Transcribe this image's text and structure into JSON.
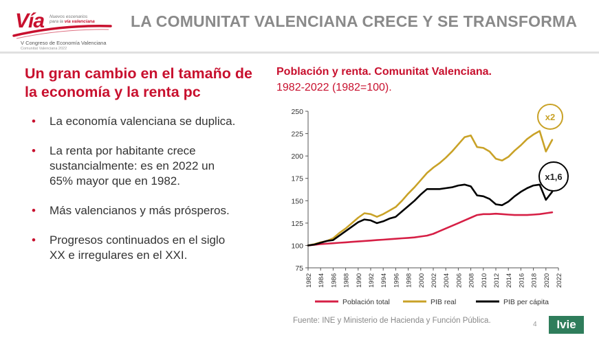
{
  "logo": {
    "brand": "Vía",
    "tagline_1": "Nuevos escenarios",
    "tagline_2": "para la",
    "tagline_3": "vía valenciana",
    "congress": "V Congreso de Economía Valenciana",
    "place": "Comunitat Valenciana 2022"
  },
  "header": {
    "title": "LA COMUNITAT VALENCIANA CRECE Y SE TRANSFORMA"
  },
  "left": {
    "heading": "Un gran cambio en el tamaño de la economía y la renta pc",
    "bullet_marker": "•",
    "bullets": [
      "La economía valenciana se duplica.",
      "La renta por habitante crece sustancialmente: es en 2022 un 65% mayor que en 1982.",
      "Más valencianos y más prósperos.",
      "Progresos continuados en el siglo XX e irregulares en el XXI."
    ]
  },
  "chart_data": {
    "type": "line",
    "title": "Población y renta. Comunitat Valenciana.",
    "subtitle": "1982-2022 (1982=100).",
    "xlabel": "",
    "ylabel": "",
    "ylim": [
      75,
      250
    ],
    "yticks": [
      75,
      100,
      125,
      150,
      175,
      200,
      225,
      250
    ],
    "x": [
      1982,
      1983,
      1984,
      1985,
      1986,
      1987,
      1988,
      1989,
      1990,
      1991,
      1992,
      1993,
      1994,
      1995,
      1996,
      1997,
      1998,
      1999,
      2000,
      2001,
      2002,
      2003,
      2004,
      2005,
      2006,
      2007,
      2008,
      2009,
      2010,
      2011,
      2012,
      2013,
      2014,
      2015,
      2016,
      2017,
      2018,
      2019,
      2020,
      2021
    ],
    "xticks": [
      1982,
      1984,
      1986,
      1988,
      1990,
      1992,
      1994,
      1996,
      1998,
      2000,
      2002,
      2004,
      2006,
      2008,
      2010,
      2012,
      2014,
      2016,
      2018,
      2020,
      2022
    ],
    "xlim": [
      1982,
      2022
    ],
    "series": [
      {
        "name": "Población total",
        "color": "#d61f45",
        "values": [
          100,
          100.8,
          101.5,
          102,
          102.5,
          103,
          103.5,
          104,
          104.5,
          105,
          105.5,
          106,
          106.5,
          107,
          107.5,
          108,
          108.5,
          109,
          110,
          111,
          113,
          116,
          119,
          122,
          125,
          128,
          131,
          134,
          135,
          135,
          135.5,
          135,
          134.5,
          134,
          134,
          134,
          134.5,
          135,
          136,
          137
        ]
      },
      {
        "name": "PIB real",
        "color": "#c9a227",
        "values": [
          100,
          101.5,
          103.5,
          105,
          108,
          114,
          119,
          125,
          131,
          136,
          135,
          132,
          135,
          139,
          143,
          150,
          158,
          165,
          173,
          181,
          187,
          192,
          198,
          205,
          213,
          221,
          223,
          210,
          209,
          205,
          197,
          195,
          199,
          206,
          212,
          219,
          224,
          228,
          205,
          218
        ]
      },
      {
        "name": "PIB per cápita",
        "color": "#000000",
        "values": [
          100,
          101,
          103,
          105,
          106,
          111,
          116,
          121,
          126,
          129,
          128,
          125,
          127,
          130,
          132,
          138,
          144,
          150,
          157,
          163,
          163,
          163,
          164,
          165,
          167,
          168,
          166,
          156,
          155,
          152,
          146,
          145,
          149,
          155,
          160,
          164,
          167,
          168,
          151,
          160
        ]
      }
    ],
    "annotations": [
      {
        "label": "x2",
        "color": "#c9a227",
        "near_series": "PIB real"
      },
      {
        "label": "x1,6",
        "color": "#000000",
        "near_series": "PIB per cápita"
      }
    ],
    "legend": "bottom"
  },
  "source": "Fuente: INE y Ministerio de Hacienda y Función Pública.",
  "page_number": "4",
  "footer_logo": "Ivie"
}
